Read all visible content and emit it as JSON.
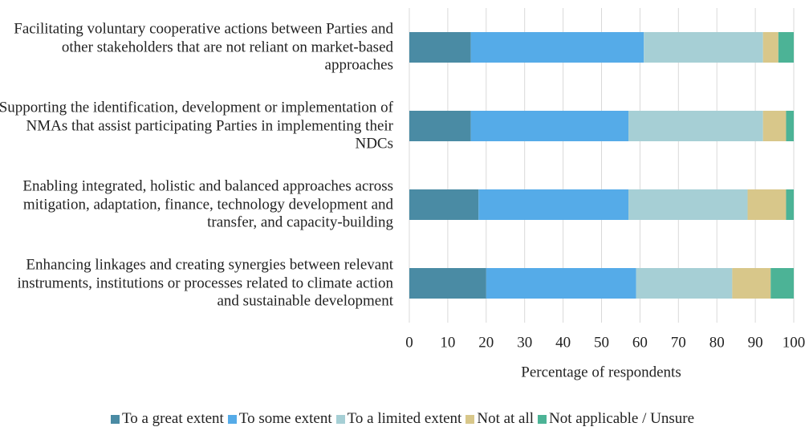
{
  "chart_data": {
    "type": "stacked-bar-horizontal",
    "categories": [
      "Facilitating voluntary cooperative actions between Parties and other stakeholders that are not reliant on market-based approaches",
      "Supporting the identification, development or implementation of NMAs that assist participating Parties in implementing their NDCs",
      "Enabling integrated, holistic and balanced approaches across mitigation, adaptation, finance, technology development and transfer, and capacity-building",
      "Enhancing linkages and creating synergies between relevant instruments, institutions or processes related to climate action and sustainable development"
    ],
    "series": [
      {
        "name": "To a great extent",
        "color": "#4a8ba4",
        "values": [
          16,
          16,
          18,
          20
        ]
      },
      {
        "name": "To some extent",
        "color": "#55abe8",
        "values": [
          45,
          41,
          39,
          39
        ]
      },
      {
        "name": "To a limited extent",
        "color": "#a6cfd5",
        "values": [
          31,
          35,
          31,
          25
        ]
      },
      {
        "name": "Not at all",
        "color": "#d8c78a",
        "values": [
          4,
          6,
          10,
          10
        ]
      },
      {
        "name": "Not applicable / Unsure",
        "color": "#4cb396",
        "values": [
          4,
          2,
          2,
          6
        ]
      }
    ],
    "xlabel": "Percentage of respondents",
    "xlim": [
      0,
      100
    ],
    "xticks": [
      0,
      10,
      20,
      30,
      40,
      50,
      60,
      70,
      80,
      90,
      100
    ],
    "grid": true,
    "legend": "bottom"
  }
}
